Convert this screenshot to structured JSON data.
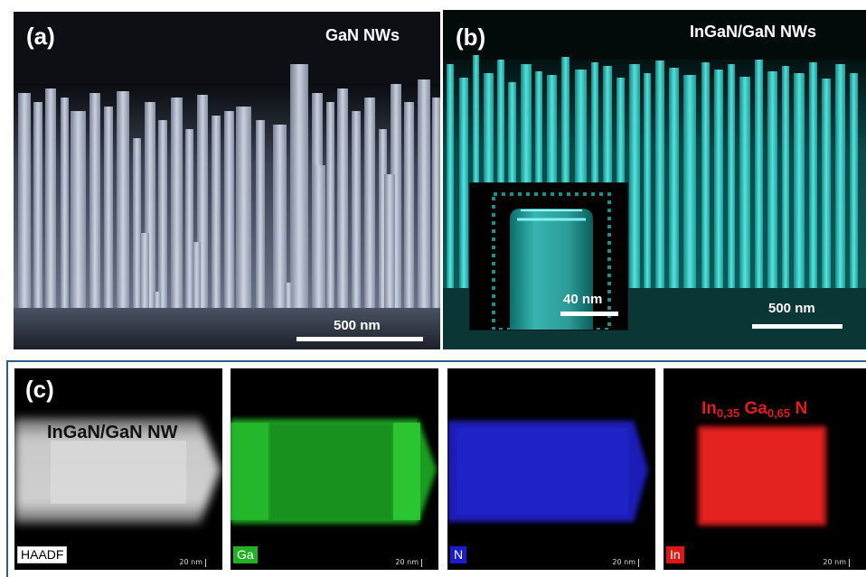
{
  "panel_a": {
    "label": "(a)",
    "title": "GaN NWs",
    "scale": "500 nm"
  },
  "panel_b": {
    "label": "(b)",
    "title": "InGaN/GaN NWs",
    "scale": "500 nm",
    "inset_scale": "40 nm"
  },
  "panel_c": {
    "label": "(c)",
    "overlay_title": "InGaN/GaN NW",
    "formula": {
      "el1": "In",
      "sub1": "0,35",
      "el2": "Ga",
      "sub2": "0,65",
      "el3": "N"
    },
    "maps": [
      {
        "tag": "HAADF",
        "scale": "20 nm",
        "tag_color": "#ffffff",
        "tag_bg": "#000000"
      },
      {
        "tag": "Ga",
        "scale": "20 nm",
        "tag_color": "#ffffff",
        "tag_bg": "#23b024"
      },
      {
        "tag": "N",
        "scale": "20 nm",
        "tag_color": "#ffffff",
        "tag_bg": "#1b1bd0"
      },
      {
        "tag": "In",
        "scale": "20 nm",
        "tag_color": "#ffffff",
        "tag_bg": "#e01515"
      }
    ]
  },
  "colors": {
    "sem_gray": "#b8c2d6",
    "sem_cyan": "#35d6d0",
    "ga": "#22b528",
    "n": "#1d22c8",
    "in": "#e3201c",
    "formula": "#e51a1a"
  }
}
